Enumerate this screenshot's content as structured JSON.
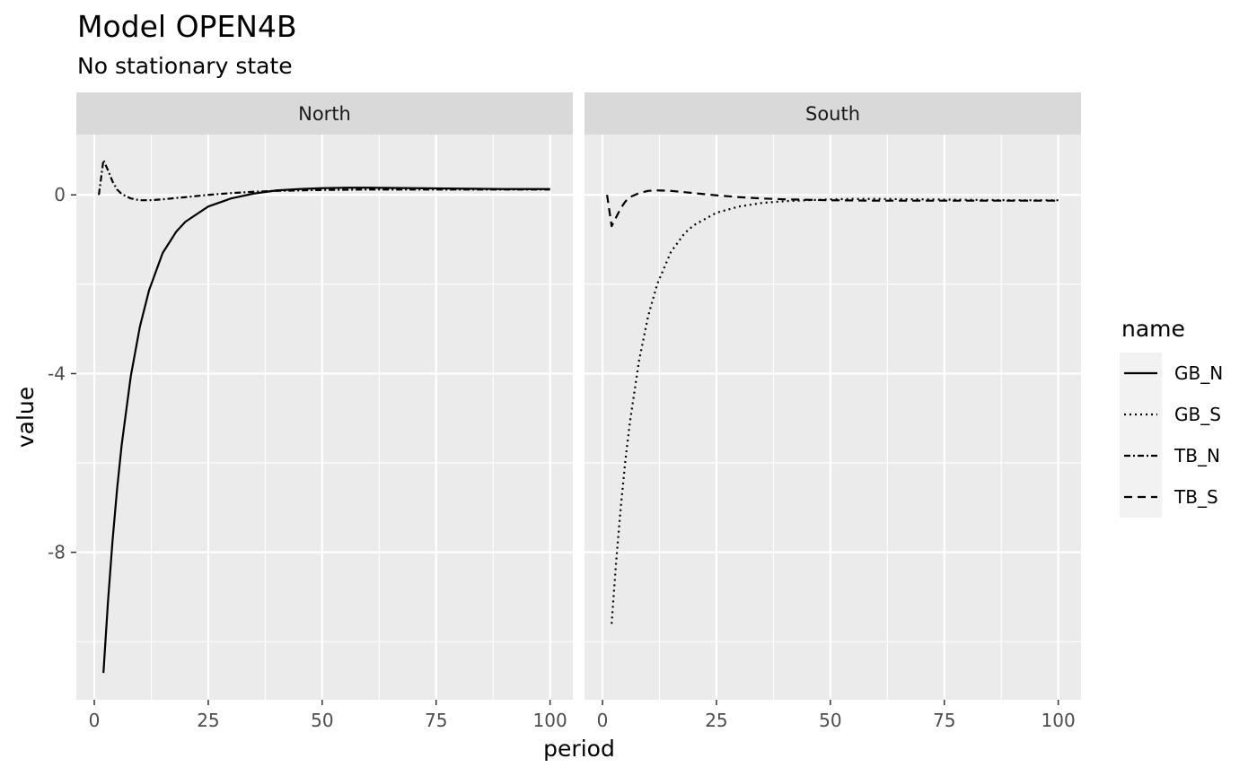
{
  "chart_data": {
    "type": "line",
    "title": "Model OPEN4B",
    "subtitle": "No stationary state",
    "xlabel": "period",
    "ylabel": "value",
    "xlim": [
      -3.95,
      105
    ],
    "ylim": [
      -11.3,
      1.35
    ],
    "x_ticks": [
      0,
      25,
      50,
      75,
      100
    ],
    "y_ticks": [
      0,
      -4,
      -8
    ],
    "y_tick_labels": [
      "0",
      "-4",
      "-8"
    ],
    "grid": true,
    "legend": {
      "title": "name",
      "placement": "right",
      "entries": [
        {
          "label": "GB_N",
          "dash": "solid"
        },
        {
          "label": "GB_S",
          "dash": "dotted"
        },
        {
          "label": "TB_N",
          "dash": "dashdot"
        },
        {
          "label": "TB_S",
          "dash": "dashed"
        }
      ]
    },
    "panels": [
      {
        "name": "North",
        "series": [
          {
            "name": "GB_N",
            "dash": "solid",
            "x": [
              2,
              3,
              4,
              5,
              6,
              8,
              10,
              12,
              15,
              18,
              20,
              25,
              30,
              35,
              40,
              45,
              50,
              55,
              60,
              70,
              80,
              90,
              100
            ],
            "y": [
              -10.7,
              -9.1,
              -7.74,
              -6.58,
              -5.6,
              -4.06,
              -2.95,
              -2.14,
              -1.3,
              -0.82,
              -0.6,
              -0.26,
              -0.08,
              0.03,
              0.1,
              0.13,
              0.15,
              0.16,
              0.16,
              0.15,
              0.14,
              0.13,
              0.13
            ]
          },
          {
            "name": "TB_N",
            "dash": "dashdot",
            "x": [
              1,
              2,
              3,
              4,
              5,
              6,
              8,
              10,
              12,
              15,
              20,
              25,
              30,
              35,
              40,
              50,
              60,
              70,
              80,
              90,
              100
            ],
            "y": [
              0,
              0.78,
              0.55,
              0.3,
              0.12,
              0.02,
              -0.08,
              -0.12,
              -0.12,
              -0.1,
              -0.05,
              0,
              0.04,
              0.07,
              0.09,
              0.11,
              0.12,
              0.12,
              0.12,
              0.12,
              0.12
            ]
          }
        ]
      },
      {
        "name": "South",
        "series": [
          {
            "name": "GB_S",
            "dash": "dotted",
            "x": [
              2,
              3,
              4,
              5,
              6,
              8,
              10,
              12,
              15,
              18,
              20,
              25,
              30,
              35,
              40,
              45,
              50,
              55,
              60,
              70,
              80,
              90,
              100
            ],
            "y": [
              -9.6,
              -8.2,
              -7.0,
              -5.96,
              -5.1,
              -3.72,
              -2.72,
              -2.0,
              -1.28,
              -0.86,
              -0.68,
              -0.4,
              -0.26,
              -0.18,
              -0.14,
              -0.12,
              -0.1,
              -0.09,
              -0.09,
              -0.1,
              -0.11,
              -0.12,
              -0.12
            ]
          },
          {
            "name": "TB_S",
            "dash": "dashed",
            "x": [
              1,
              2,
              3,
              4,
              5,
              6,
              8,
              10,
              12,
              15,
              20,
              25,
              30,
              35,
              40,
              50,
              60,
              70,
              80,
              90,
              100
            ],
            "y": [
              0,
              -0.7,
              -0.5,
              -0.3,
              -0.15,
              -0.05,
              0.04,
              0.09,
              0.1,
              0.09,
              0.04,
              -0.01,
              -0.05,
              -0.08,
              -0.1,
              -0.12,
              -0.13,
              -0.13,
              -0.13,
              -0.13,
              -0.13
            ]
          }
        ]
      }
    ]
  }
}
